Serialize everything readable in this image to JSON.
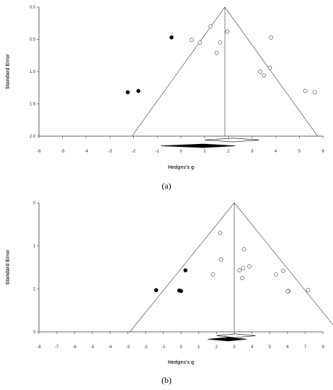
{
  "chart_data": [
    {
      "type": "scatter",
      "panel_label": "(a)",
      "title": "",
      "xlabel": "Hedges's g",
      "ylabel": "Standard Error",
      "xlim": [
        -6,
        6
      ],
      "ylim": [
        0,
        2
      ],
      "y_inverted": true,
      "x_ticks": [
        "-6",
        "-5",
        "-4",
        "-3",
        "-2",
        "-1",
        "0",
        "1",
        "2",
        "3",
        "4",
        "5",
        "6"
      ],
      "y_ticks": [
        "0.0",
        "0.5",
        "1.0",
        "1.5",
        "2.0"
      ],
      "combined_effect": 1.85,
      "series": [
        {
          "marker": "open-circle",
          "points": [
            [
              1.25,
              0.3
            ],
            [
              1.95,
              0.38
            ],
            [
              0.45,
              0.51
            ],
            [
              0.8,
              0.55
            ],
            [
              1.65,
              0.55
            ],
            [
              1.5,
              0.71
            ],
            [
              3.8,
              0.47
            ],
            [
              3.75,
              0.94
            ],
            [
              3.35,
              1.0
            ],
            [
              3.5,
              1.06
            ],
            [
              5.25,
              1.3
            ],
            [
              5.65,
              1.32
            ]
          ]
        },
        {
          "marker": "filled-circle",
          "points": [
            [
              -0.4,
              0.47
            ],
            [
              -1.8,
              1.3
            ],
            [
              -2.25,
              1.32
            ]
          ]
        }
      ],
      "diamonds": [
        {
          "style": "open",
          "center": 2.2,
          "low": 1.0,
          "high": 3.3,
          "se": 2.06
        },
        {
          "style": "filled",
          "center": 0.95,
          "low": -0.85,
          "high": 2.3,
          "se": 2.15
        }
      ]
    },
    {
      "type": "scatter",
      "panel_label": "(b)",
      "title": "",
      "xlabel": "Hedges's g",
      "ylabel": "Standard Error",
      "xlim": [
        -8,
        8
      ],
      "ylim": [
        0,
        3
      ],
      "y_inverted": true,
      "x_ticks": [
        "-8",
        "-7",
        "-6",
        "-5",
        "-4",
        "-3",
        "-2",
        "-1",
        "0",
        "1",
        "2",
        "3",
        "4",
        "5",
        "6",
        "7",
        "8"
      ],
      "y_ticks": [
        "0",
        "1",
        "2",
        "3"
      ],
      "combined_effect": 3.0,
      "series": [
        {
          "marker": "open-circle",
          "points": [
            [
              2.2,
              0.7
            ],
            [
              2.25,
              1.32
            ],
            [
              1.8,
              1.67
            ],
            [
              3.55,
              1.08
            ],
            [
              3.5,
              1.52
            ],
            [
              3.3,
              1.57
            ],
            [
              3.85,
              1.48
            ],
            [
              3.45,
              1.75
            ],
            [
              5.35,
              1.67
            ],
            [
              5.75,
              1.58
            ],
            [
              6.05,
              2.05
            ],
            [
              6.0,
              2.06
            ],
            [
              7.15,
              2.03
            ]
          ]
        },
        {
          "marker": "filled-circle",
          "points": [
            [
              0.25,
              1.57
            ],
            [
              -1.4,
              2.03
            ],
            [
              -0.1,
              2.04
            ],
            [
              0.0,
              2.05
            ]
          ]
        }
      ],
      "diamonds": [
        {
          "style": "open",
          "center": 3.05,
          "low": 2.0,
          "high": 4.2,
          "se": 3.09
        },
        {
          "style": "filled",
          "center": 2.65,
          "low": 1.5,
          "high": 3.7,
          "se": 3.17
        }
      ]
    }
  ]
}
